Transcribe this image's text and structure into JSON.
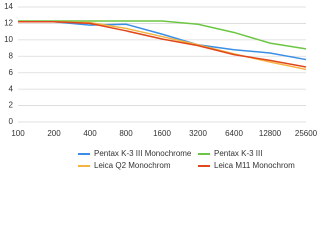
{
  "chart_data": {
    "type": "line",
    "categories": [
      "100",
      "200",
      "400",
      "800",
      "1600",
      "3200",
      "6400",
      "12800",
      "25600"
    ],
    "series": [
      {
        "name": "Pentax K-3 III Monochrome",
        "color": "#3a8ee6",
        "values": [
          12.2,
          12.2,
          11.8,
          11.9,
          10.7,
          9.4,
          8.8,
          8.4,
          7.6
        ]
      },
      {
        "name": "Pentax K-3 III",
        "color": "#6cc644",
        "values": [
          12.3,
          12.3,
          12.3,
          12.3,
          12.3,
          11.9,
          10.9,
          9.6,
          8.9
        ]
      },
      {
        "name": "Leica Q2 Monochrom",
        "color": "#f5b342",
        "values": [
          12.2,
          12.2,
          12.1,
          11.4,
          10.4,
          9.4,
          8.3,
          7.3,
          6.4
        ]
      },
      {
        "name": "Leica M11 Monochrom",
        "color": "#e0471c",
        "values": [
          12.2,
          12.2,
          12.0,
          11.1,
          10.1,
          9.3,
          8.2,
          7.5,
          6.7
        ]
      }
    ],
    "ylim": [
      0,
      14
    ],
    "yticks": [
      0,
      2,
      4,
      6,
      8,
      10,
      12,
      14
    ],
    "grid": true
  }
}
